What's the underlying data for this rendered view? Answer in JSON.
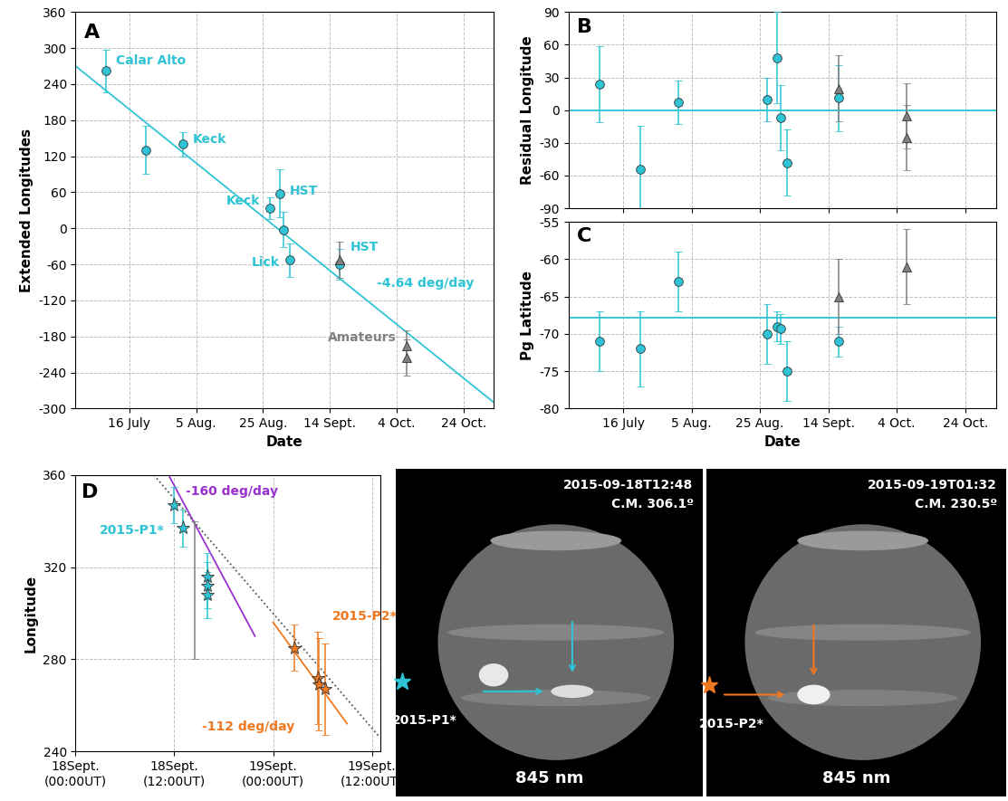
{
  "chart_data": [
    {
      "type": "scatter",
      "panel_label": "A",
      "xlabel": "Date",
      "ylabel": "Extended Longitudes",
      "xlim": [
        181,
        306
      ],
      "xticks": [
        {
          "value": 197,
          "label": "16 July"
        },
        {
          "value": 217,
          "label": "5 Aug."
        },
        {
          "value": 237,
          "label": "25 Aug."
        },
        {
          "value": 257,
          "label": "14 Sept."
        },
        {
          "value": 277,
          "label": "4 Oct."
        },
        {
          "value": 297,
          "label": "24 Oct."
        }
      ],
      "ylim": [
        -300,
        360
      ],
      "yticks": [
        -300,
        -240,
        -180,
        -120,
        -60,
        0,
        60,
        120,
        180,
        240,
        300,
        360
      ],
      "grid": true,
      "series": [
        {
          "color": "#2ec4d6",
          "marker": "o",
          "x": [
            190,
            202,
            213,
            239,
            242,
            243,
            245,
            260
          ],
          "values": [
            262,
            130,
            140,
            33,
            58,
            -2,
            -53,
            -60
          ],
          "errors": [
            35,
            40,
            20,
            18,
            40,
            30,
            28,
            25
          ],
          "point_labels": [
            "Calar Alto",
            null,
            "Keck",
            "Keck",
            "HST",
            null,
            "Lick",
            "HST"
          ]
        },
        {
          "color": "#808080",
          "marker": "^",
          "x": [
            260,
            280,
            280
          ],
          "values": [
            -52,
            -195,
            -215
          ],
          "errors": [
            30,
            25,
            30
          ],
          "point_labels": [
            null,
            "Amateurs",
            null
          ]
        }
      ],
      "lines": [
        {
          "color": "#2ec4d6",
          "line_style": "solid",
          "x": [
            181,
            306
          ],
          "values": [
            270,
            -290
          ],
          "label": "-4.64 deg/day"
        }
      ]
    },
    {
      "type": "scatter",
      "panel_label": "B",
      "ylabel": "Residual Longitude",
      "tick_labels": "y",
      "xlim": [
        181,
        306
      ],
      "xticks": [
        197,
        217,
        237,
        257,
        277,
        297
      ],
      "ylim": [
        -90,
        90
      ],
      "yticks": [
        -90,
        -60,
        -30,
        0,
        30,
        60,
        90
      ],
      "grid": true,
      "series": [
        {
          "color": "#2ec4d6",
          "marker": "o",
          "x": [
            190,
            202,
            213,
            239,
            242,
            243,
            245,
            260
          ],
          "values": [
            24,
            -54,
            7,
            10,
            48,
            -7,
            -48,
            11
          ],
          "errors": [
            35,
            40,
            20,
            20,
            42,
            30,
            30,
            30
          ]
        },
        {
          "color": "#808080",
          "marker": "^",
          "x": [
            260,
            280,
            280
          ],
          "values": [
            20,
            -5,
            -25
          ],
          "errors": [
            30,
            30,
            30
          ]
        }
      ],
      "lines": [
        {
          "color": "#2ec4d6",
          "line_style": "solid",
          "x": [
            181,
            306
          ],
          "values": [
            0,
            0
          ]
        }
      ]
    },
    {
      "type": "scatter",
      "panel_label": "C",
      "xlabel": "Date",
      "ylabel": "Pg Latitude",
      "xlim": [
        181,
        306
      ],
      "xticks": [
        {
          "value": 197,
          "label": "16 July"
        },
        {
          "value": 217,
          "label": "5 Aug."
        },
        {
          "value": 237,
          "label": "25 Aug."
        },
        {
          "value": 257,
          "label": "14 Sept."
        },
        {
          "value": 277,
          "label": "4 Oct."
        },
        {
          "value": 297,
          "label": "24 Oct."
        }
      ],
      "ylim": [
        -80,
        -55
      ],
      "yticks": [
        -80,
        -75,
        -70,
        -65,
        -60,
        -55
      ],
      "grid": true,
      "series": [
        {
          "color": "#2ec4d6",
          "marker": "o",
          "x": [
            190,
            202,
            213,
            239,
            242,
            243,
            245,
            260
          ],
          "values": [
            -71,
            -72,
            -63,
            -70,
            -69,
            -69.3,
            -75,
            -71
          ],
          "errors": [
            4,
            5,
            4,
            4,
            2,
            2,
            4,
            2
          ]
        },
        {
          "color": "#808080",
          "marker": "^",
          "x": [
            260,
            280
          ],
          "values": [
            -65,
            -61
          ],
          "errors": [
            5,
            5
          ]
        }
      ],
      "lines": [
        {
          "color": "#2ec4d6",
          "line_style": "solid",
          "x": [
            181,
            306
          ],
          "values": [
            -67.8,
            -67.8
          ]
        }
      ]
    },
    {
      "type": "scatter",
      "panel_label": "D",
      "ylabel": "Longitude",
      "xlim": [
        0,
        37
      ],
      "xticks": [
        {
          "value": 0,
          "label": "18Sept.\n(00:00UT)"
        },
        {
          "value": 12,
          "label": "18Sept.\n(12:00UT)"
        },
        {
          "value": 24,
          "label": "19Sept.\n(00:00UT)"
        },
        {
          "value": 36,
          "label": "19Sept.\n(12:00UT)"
        }
      ],
      "ylim": [
        240,
        360
      ],
      "yticks": [
        240,
        280,
        320,
        360
      ],
      "grid": true,
      "series": [
        {
          "color": "#2ec4d6",
          "marker": "*",
          "x": [
            12,
            13,
            16,
            16,
            16
          ],
          "values": [
            347,
            337,
            316,
            312,
            308
          ],
          "errors": [
            8,
            8,
            10,
            10,
            10
          ],
          "label": "2015-P1*"
        },
        {
          "color": "#808080",
          "marker": "none",
          "x": [
            14.5
          ],
          "values": [
            310
          ],
          "errors": [
            30
          ]
        },
        {
          "color": "#f07820",
          "marker": "*",
          "x": [
            26.6,
            29.4,
            29.6,
            30.3
          ],
          "values": [
            285,
            272,
            269,
            267
          ],
          "errors": [
            10,
            20,
            20,
            20
          ],
          "label": "2015-P2*"
        }
      ],
      "lines": [
        {
          "color": "#9b30d0",
          "line_style": "solid",
          "x": [
            11.3,
            21.8
          ],
          "values": [
            360,
            290
          ],
          "label": "-160 deg/day"
        },
        {
          "color": "#f07820",
          "line_style": "solid",
          "x": [
            24,
            33
          ],
          "values": [
            296,
            252
          ],
          "label": "-112 deg/day"
        },
        {
          "color": "#555555",
          "line_style": "dotted",
          "x": [
            9.5,
            37
          ],
          "values": [
            360,
            246
          ]
        }
      ]
    }
  ],
  "images": [
    {
      "timestamp": "2015-09-18T12:48",
      "cm": "C.M. 306.1º",
      "wavelength": "845 nm",
      "feature": "2015-P1*",
      "color": "#2ec4d6"
    },
    {
      "timestamp": "2015-09-19T01:32",
      "cm": "C.M. 230.5º",
      "wavelength": "845 nm",
      "feature": "2015-P2*",
      "color": "#f07820"
    }
  ]
}
